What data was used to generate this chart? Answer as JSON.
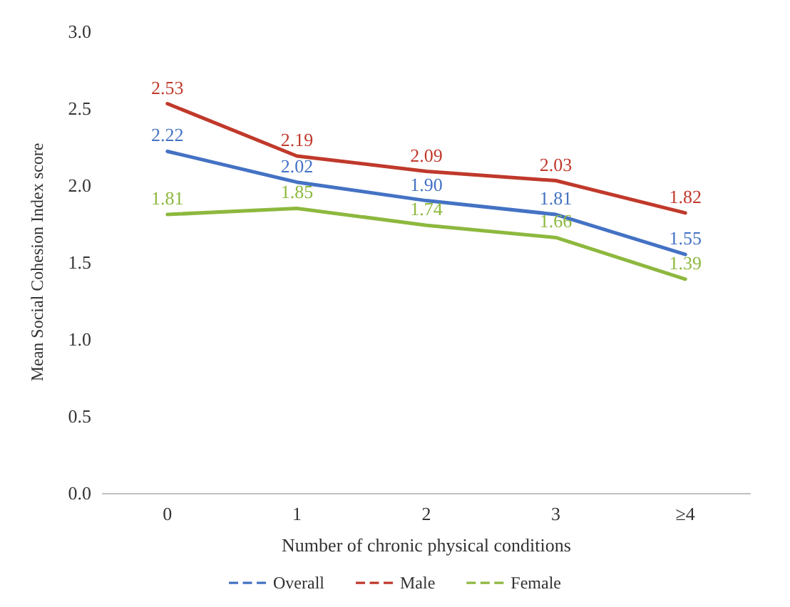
{
  "chart_data": {
    "type": "line",
    "xlabel": "Number of chronic physical conditions",
    "ylabel": "Mean Social Cohesion Index score",
    "categories": [
      "0",
      "1",
      "2",
      "3",
      "≥4"
    ],
    "series": [
      {
        "name": "Overall",
        "color": "#4472c4",
        "values": [
          2.22,
          2.02,
          1.9,
          1.81,
          1.55
        ],
        "value_labels": [
          "2.22",
          "2.02",
          "1.90",
          "1.81",
          "1.55"
        ]
      },
      {
        "name": "Male",
        "color": "#c0392b",
        "values": [
          2.53,
          2.19,
          2.09,
          2.03,
          1.82
        ],
        "value_labels": [
          "2.53",
          "2.19",
          "2.09",
          "2.03",
          "1.82"
        ]
      },
      {
        "name": "Female",
        "color": "#8db83e",
        "values": [
          1.81,
          1.85,
          1.74,
          1.66,
          1.39
        ],
        "value_labels": [
          "1.81",
          "1.85",
          "1.74",
          "1.66",
          "1.39"
        ]
      }
    ],
    "ylim": [
      0,
      3
    ],
    "yticks": [
      {
        "value": 0,
        "label": "0.0"
      },
      {
        "value": 0.5,
        "label": "0.5"
      },
      {
        "value": 1,
        "label": "1.0"
      },
      {
        "value": 1.5,
        "label": "1.5"
      },
      {
        "value": 2,
        "label": "2.0"
      },
      {
        "value": 2.5,
        "label": "2.5"
      },
      {
        "value": 3,
        "label": "3.0"
      }
    ],
    "legend": "bottom",
    "marker": "none",
    "line_style": "solid"
  }
}
